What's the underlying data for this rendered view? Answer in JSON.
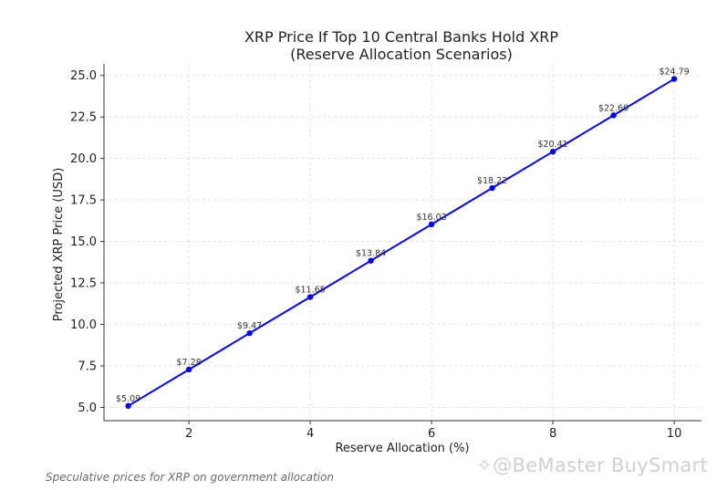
{
  "chart_data": {
    "type": "line",
    "title": "XRP Price If Top 10 Central Banks Hold XRP",
    "subtitle": "(Reserve Allocation Scenarios)",
    "xlabel": "Reserve Allocation (%)",
    "ylabel": "Projected XRP Price (USD)",
    "x": [
      1,
      2,
      3,
      4,
      5,
      6,
      7,
      8,
      9,
      10
    ],
    "y": [
      5.09,
      7.28,
      9.47,
      11.65,
      13.84,
      16.03,
      18.22,
      20.41,
      22.6,
      24.79
    ],
    "point_labels": [
      "$5.09",
      "$7.28",
      "$9.47",
      "$11.65",
      "$13.84",
      "$16.03",
      "$18.22",
      "$20.41",
      "$22.60",
      "$24.79"
    ],
    "xlim": [
      0.6,
      10.45
    ],
    "ylim": [
      4.2,
      25.7
    ],
    "xticks": [
      2,
      4,
      6,
      8,
      10
    ],
    "xtick_labels": [
      "2",
      "4",
      "6",
      "8",
      "10"
    ],
    "yticks": [
      5.0,
      7.5,
      10.0,
      12.5,
      15.0,
      17.5,
      20.0,
      22.5,
      25.0
    ],
    "ytick_labels": [
      "5.0",
      "7.5",
      "10.0",
      "12.5",
      "15.0",
      "17.5",
      "20.0",
      "22.5",
      "25.0"
    ],
    "grid": true,
    "color": "#0000ff"
  },
  "caption": "Speculative prices for XRP on government allocation",
  "watermark": "✧@BeMaster BuySmart"
}
